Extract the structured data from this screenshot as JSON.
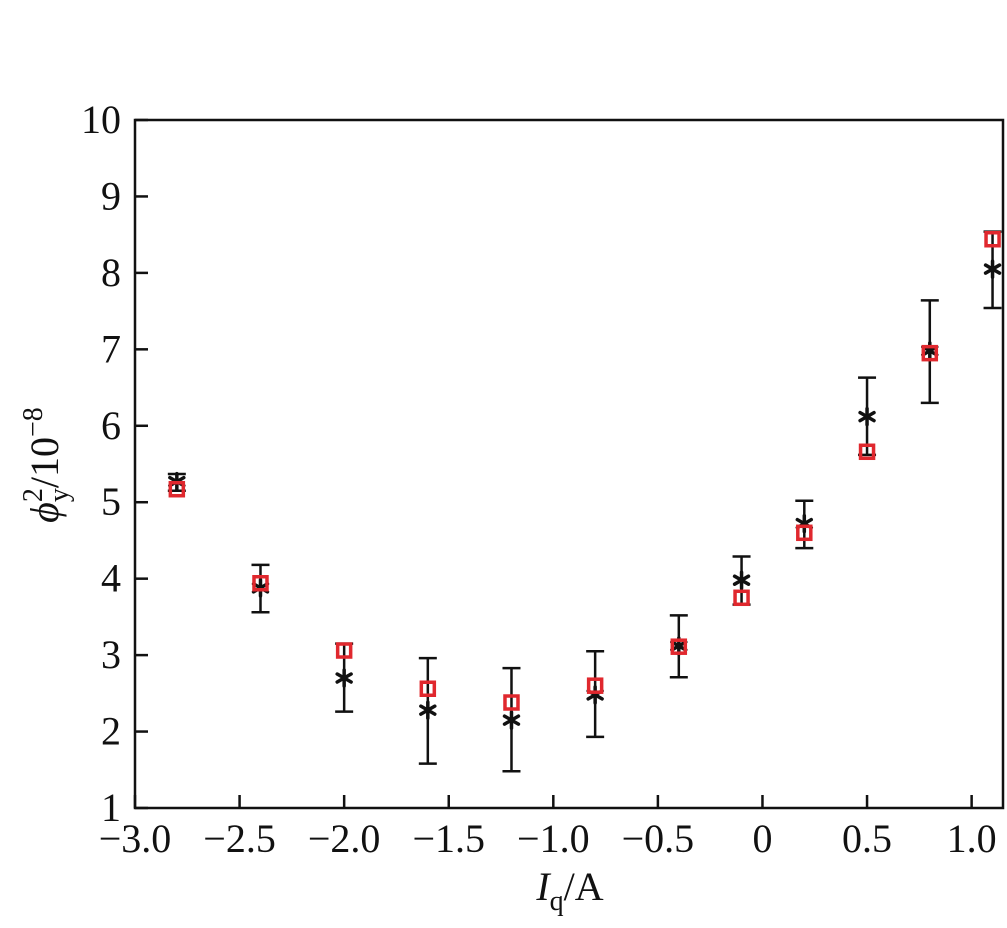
{
  "chart_data": {
    "type": "scatter",
    "xlabel": {
      "main": "I",
      "sub": "q",
      "unit": "/A"
    },
    "ylabel": {
      "main": "ϕ",
      "sub": "y",
      "sup": "2",
      "unit": "/10",
      "exp": "−8"
    },
    "xlim": [
      -3.0,
      1.15
    ],
    "ylim": [
      1,
      10
    ],
    "xticks": [
      -3.0,
      -2.5,
      -2.0,
      -1.5,
      -1.0,
      -0.5,
      0,
      0.5,
      1.0
    ],
    "xtick_labels": [
      "−3.0",
      "−2.5",
      "−2.0",
      "−1.5",
      "−1.0",
      "−0.5",
      "0",
      "0.5",
      "1.0"
    ],
    "yticks": [
      1,
      2,
      3,
      4,
      5,
      6,
      7,
      8,
      9,
      10
    ],
    "ytick_labels": [
      "1",
      "2",
      "3",
      "4",
      "5",
      "6",
      "7",
      "8",
      "9",
      "10"
    ],
    "grid": false,
    "series": [
      {
        "marker": "asterisk",
        "color": "#111111",
        "x": [
          -2.8,
          -2.4,
          -2.0,
          -1.6,
          -1.2,
          -0.8,
          -0.4,
          -0.1,
          0.2,
          0.5,
          0.8,
          1.1
        ],
        "y": [
          5.27,
          3.88,
          2.7,
          2.28,
          2.15,
          2.48,
          3.12,
          3.98,
          4.72,
          6.12,
          6.98,
          8.05
        ],
        "err_low": [
          5.15,
          3.56,
          2.26,
          1.58,
          1.48,
          1.93,
          2.71,
          3.66,
          4.4,
          5.62,
          6.3,
          7.54
        ],
        "err_high": [
          5.37,
          4.18,
          3.15,
          2.96,
          2.83,
          3.05,
          3.52,
          4.29,
          5.02,
          6.63,
          7.64,
          8.54
        ]
      },
      {
        "marker": "square",
        "color": "#e0282e",
        "x": [
          -2.8,
          -2.4,
          -2.0,
          -1.6,
          -1.2,
          -0.8,
          -0.4,
          -0.1,
          0.2,
          0.5,
          0.8,
          1.1
        ],
        "y": [
          5.17,
          3.94,
          3.06,
          2.56,
          2.38,
          2.6,
          3.11,
          3.75,
          4.6,
          5.66,
          6.95,
          8.44
        ]
      }
    ]
  }
}
